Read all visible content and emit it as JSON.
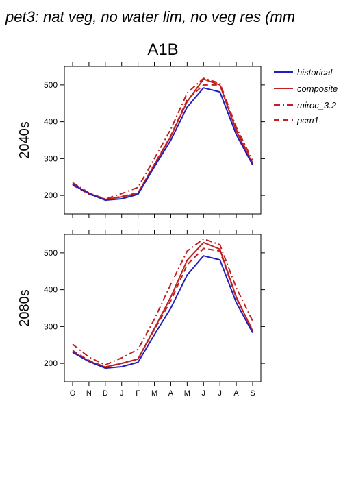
{
  "page_title": "pet3: nat veg, no water lim, no veg res (mm",
  "scenario": "A1B",
  "legend": {
    "historical": "historical",
    "composite": "composite",
    "miroc": "miroc_3.2",
    "pcm1": "pcm1"
  },
  "colors": {
    "historical": "#2020c0",
    "scenario": "#c02020",
    "axis": "#000000"
  },
  "chart_data": [
    {
      "type": "line",
      "panel_label": "2040s",
      "categories": [
        "O",
        "N",
        "D",
        "J",
        "F",
        "M",
        "A",
        "M",
        "J",
        "J",
        "A",
        "S"
      ],
      "ylim": [
        150,
        550
      ],
      "yticks": [
        200,
        300,
        400,
        500
      ],
      "series": [
        {
          "name": "historical",
          "style": "solid",
          "values": [
            230,
            205,
            187,
            191,
            203,
            278,
            350,
            440,
            492,
            481,
            365,
            283
          ]
        },
        {
          "name": "composite",
          "style": "solid",
          "values": [
            231,
            206,
            189,
            196,
            206,
            283,
            360,
            455,
            516,
            500,
            375,
            286
          ]
        },
        {
          "name": "miroc_3.2",
          "style": "dashdot",
          "values": [
            235,
            207,
            190,
            205,
            222,
            300,
            380,
            478,
            518,
            505,
            385,
            295
          ]
        },
        {
          "name": "pcm1",
          "style": "dashed",
          "values": [
            228,
            204,
            188,
            198,
            207,
            285,
            362,
            460,
            500,
            500,
            378,
            288
          ]
        }
      ]
    },
    {
      "type": "line",
      "panel_label": "2080s",
      "categories": [
        "O",
        "N",
        "D",
        "J",
        "F",
        "M",
        "A",
        "M",
        "J",
        "J",
        "A",
        "S"
      ],
      "ylim": [
        150,
        550
      ],
      "yticks": [
        200,
        300,
        400,
        500
      ],
      "series": [
        {
          "name": "historical",
          "style": "solid",
          "values": [
            230,
            205,
            187,
            191,
            203,
            278,
            350,
            440,
            492,
            481,
            365,
            283
          ]
        },
        {
          "name": "composite",
          "style": "solid",
          "values": [
            232,
            206,
            190,
            200,
            212,
            295,
            380,
            480,
            528,
            510,
            380,
            288
          ]
        },
        {
          "name": "miroc_3.2",
          "style": "dashdot",
          "values": [
            252,
            217,
            196,
            215,
            238,
            320,
            415,
            505,
            538,
            522,
            405,
            315
          ]
        },
        {
          "name": "pcm1",
          "style": "dashed",
          "values": [
            235,
            208,
            190,
            200,
            212,
            292,
            370,
            468,
            512,
            505,
            378,
            290
          ]
        }
      ]
    }
  ]
}
